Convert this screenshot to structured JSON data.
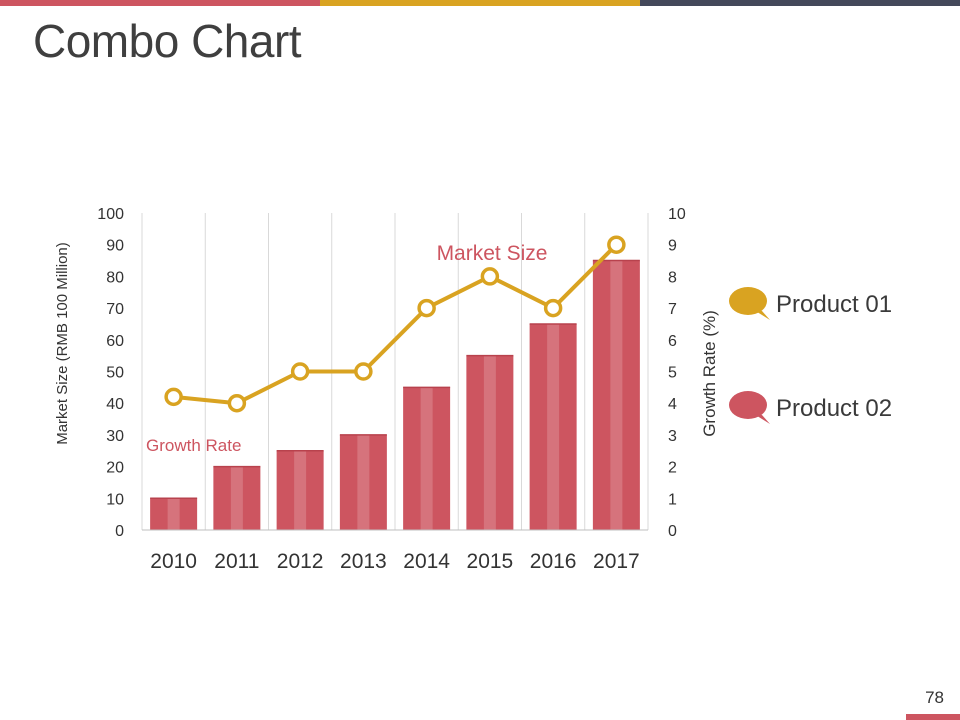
{
  "slide": {
    "title": "Combo Chart",
    "page_number": "78",
    "colors": {
      "bar": "#cd5560",
      "line": "#d9a321",
      "accent_dark": "#44495a"
    }
  },
  "legend": [
    {
      "label": "Product 01",
      "icon": "speech-bubble-icon",
      "color": "#d9a321"
    },
    {
      "label": "Product 02",
      "icon": "speech-bubble-icon",
      "color": "#cd5560"
    }
  ],
  "chart_data": {
    "type": "bar",
    "categories": [
      "2010",
      "2011",
      "2012",
      "2013",
      "2014",
      "2015",
      "2016",
      "2017"
    ],
    "series": [
      {
        "name": "Market Size",
        "type": "bar",
        "axis": "left",
        "color": "#cd5560",
        "values": [
          10,
          20,
          25,
          30,
          45,
          55,
          65,
          85
        ]
      },
      {
        "name": "Growth Rate",
        "type": "line",
        "axis": "right",
        "color": "#d9a321",
        "values": [
          4.2,
          4,
          5,
          5,
          7,
          8,
          7,
          9
        ]
      }
    ],
    "ylabel": "Market Size (RMB 100 Million)",
    "ylim": [
      0,
      100
    ],
    "yticks": [
      "0",
      "10",
      "20",
      "30",
      "40",
      "50",
      "60",
      "70",
      "80",
      "90",
      "100"
    ],
    "y2label": "Growth Rate (%)",
    "y2lim": [
      0,
      10
    ],
    "y2ticks": [
      "0",
      "1",
      "2",
      "3",
      "4",
      "5",
      "6",
      "7",
      "8",
      "9",
      "10"
    ],
    "annotations": [
      {
        "text": "Market Size",
        "color": "#cd5560"
      },
      {
        "text": "Growth Rate",
        "color": "#cd5560"
      }
    ],
    "grid": "vertical"
  }
}
